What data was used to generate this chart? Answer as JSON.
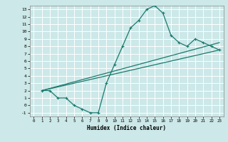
{
  "title": "",
  "xlabel": "Humidex (Indice chaleur)",
  "bg_color": "#cce8e8",
  "grid_color": "#ffffff",
  "line_color": "#1a7a6e",
  "xlim": [
    -0.5,
    23.5
  ],
  "ylim": [
    -1.5,
    13.5
  ],
  "xticks": [
    0,
    1,
    2,
    3,
    4,
    5,
    6,
    7,
    8,
    9,
    10,
    11,
    12,
    13,
    14,
    15,
    16,
    17,
    18,
    19,
    20,
    21,
    22,
    23
  ],
  "yticks": [
    -1,
    0,
    1,
    2,
    3,
    4,
    5,
    6,
    7,
    8,
    9,
    10,
    11,
    12,
    13
  ],
  "curve1_x": [
    1,
    2,
    3,
    4,
    5,
    6,
    7,
    8,
    9,
    10,
    11,
    12,
    13,
    14,
    15,
    16,
    17,
    18,
    19,
    20,
    21,
    22,
    23
  ],
  "curve1_y": [
    2.0,
    2.0,
    1.0,
    1.0,
    0.0,
    -0.5,
    -1.0,
    -1.0,
    3.0,
    5.5,
    8.0,
    10.5,
    11.5,
    13.0,
    13.5,
    12.5,
    9.5,
    8.5,
    8.0,
    9.0,
    8.5,
    8.0,
    7.5
  ],
  "line1_x": [
    1,
    23
  ],
  "line1_y": [
    2.0,
    7.5
  ],
  "line2_x": [
    1,
    23
  ],
  "line2_y": [
    2.0,
    8.5
  ]
}
